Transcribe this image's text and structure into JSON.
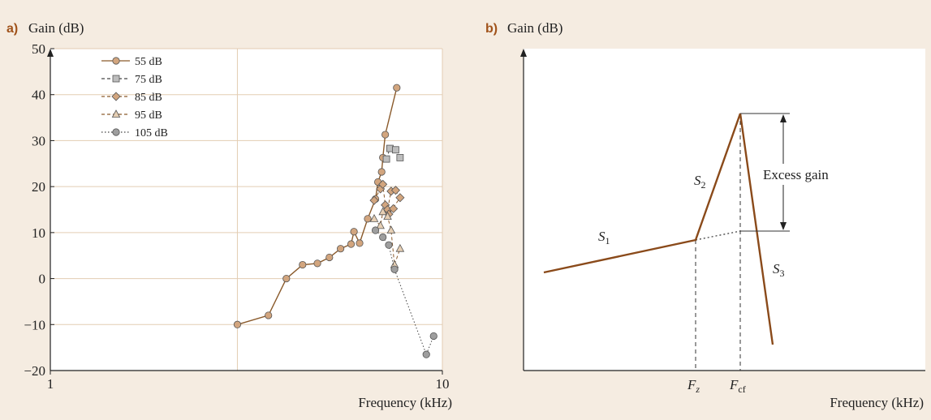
{
  "chart_data": [
    {
      "type": "scatter",
      "panel_letter": "a)",
      "ylabel": "Gain (dB)",
      "xlabel": "Frequency (kHz)",
      "x_scale": "log",
      "xlim": [
        1,
        10
      ],
      "ylim": [
        -20,
        50
      ],
      "x_ticks": [
        1,
        10
      ],
      "y_ticks": [
        -20,
        -10,
        0,
        10,
        20,
        30,
        40,
        50
      ],
      "grid": "light horizontal gridlines every 10 dB and a vertical gridline near 3 kHz",
      "legend_position": "top-left",
      "series": [
        {
          "name": "55 dB",
          "marker": "circle",
          "line": "solid",
          "color": "#8a5a2b",
          "marker_fill": "#d2a57e",
          "points": [
            [
              3.0,
              -10
            ],
            [
              3.6,
              -8
            ],
            [
              4.0,
              0
            ],
            [
              4.4,
              3
            ],
            [
              4.8,
              3.3
            ],
            [
              5.15,
              4.6
            ],
            [
              5.5,
              6.5
            ],
            [
              5.85,
              7.5
            ],
            [
              5.95,
              10.2
            ],
            [
              6.15,
              7.7
            ],
            [
              6.45,
              13
            ],
            [
              6.75,
              17.3
            ],
            [
              6.85,
              21
            ],
            [
              7.0,
              23.2
            ],
            [
              7.05,
              26.3
            ],
            [
              7.15,
              31.3
            ],
            [
              7.65,
              41.5
            ]
          ]
        },
        {
          "name": "75 dB",
          "marker": "square",
          "line": "dashed",
          "color": "#444444",
          "marker_fill": "#bdbdbd",
          "points": [
            [
              7.2,
              26
            ],
            [
              7.35,
              28.3
            ],
            [
              7.6,
              28
            ],
            [
              7.8,
              26.3
            ]
          ]
        },
        {
          "name": "85 dB",
          "marker": "diamond",
          "line": "dashed",
          "color": "#8a5a2b",
          "marker_fill": "#d2a57e",
          "points": [
            [
              6.7,
              17
            ],
            [
              6.95,
              19.5
            ],
            [
              7.05,
              20.5
            ],
            [
              7.15,
              16
            ],
            [
              7.25,
              15
            ],
            [
              7.4,
              19
            ],
            [
              7.6,
              19.2
            ],
            [
              7.8,
              17.6
            ],
            [
              7.3,
              14
            ],
            [
              7.5,
              15.2
            ]
          ]
        },
        {
          "name": "95 dB",
          "marker": "triangle",
          "line": "dashed",
          "color": "#8a5a2b",
          "marker_fill": "#e6cfb4",
          "points": [
            [
              6.7,
              13
            ],
            [
              6.95,
              11.5
            ],
            [
              7.05,
              14.5
            ],
            [
              7.25,
              13.5
            ],
            [
              7.4,
              10.5
            ],
            [
              7.55,
              3
            ],
            [
              7.8,
              6.5
            ]
          ]
        },
        {
          "name": "105 dB",
          "marker": "circle",
          "line": "dotted",
          "color": "#444444",
          "marker_fill": "#9e9e9e",
          "points": [
            [
              6.75,
              10.5
            ],
            [
              7.05,
              9
            ],
            [
              7.3,
              7.3
            ],
            [
              7.55,
              2
            ],
            [
              9.1,
              -16.5
            ],
            [
              9.5,
              -12.5
            ]
          ]
        }
      ]
    },
    {
      "type": "line",
      "panel_letter": "b)",
      "ylabel": "Gain (dB)",
      "xlabel": "Frequency (kHz)",
      "schematic": true,
      "x_markers": [
        "F_z",
        "F_cf"
      ],
      "segment_labels": [
        "S_1",
        "S_2",
        "S_3"
      ],
      "annotation": "Excess gain",
      "series": [
        {
          "line": "solid",
          "color": "#8a4a1a",
          "points": [
            [
              0.07,
              0.33
            ],
            [
              0.57,
              0.44
            ],
            [
              0.71,
              0.91
            ],
            [
              0.8,
              0.09
            ]
          ]
        },
        {
          "line": "dotted",
          "color": "#444444",
          "points": [
            [
              0.57,
              0.44
            ],
            [
              0.71,
              0.47
            ]
          ]
        }
      ]
    }
  ]
}
